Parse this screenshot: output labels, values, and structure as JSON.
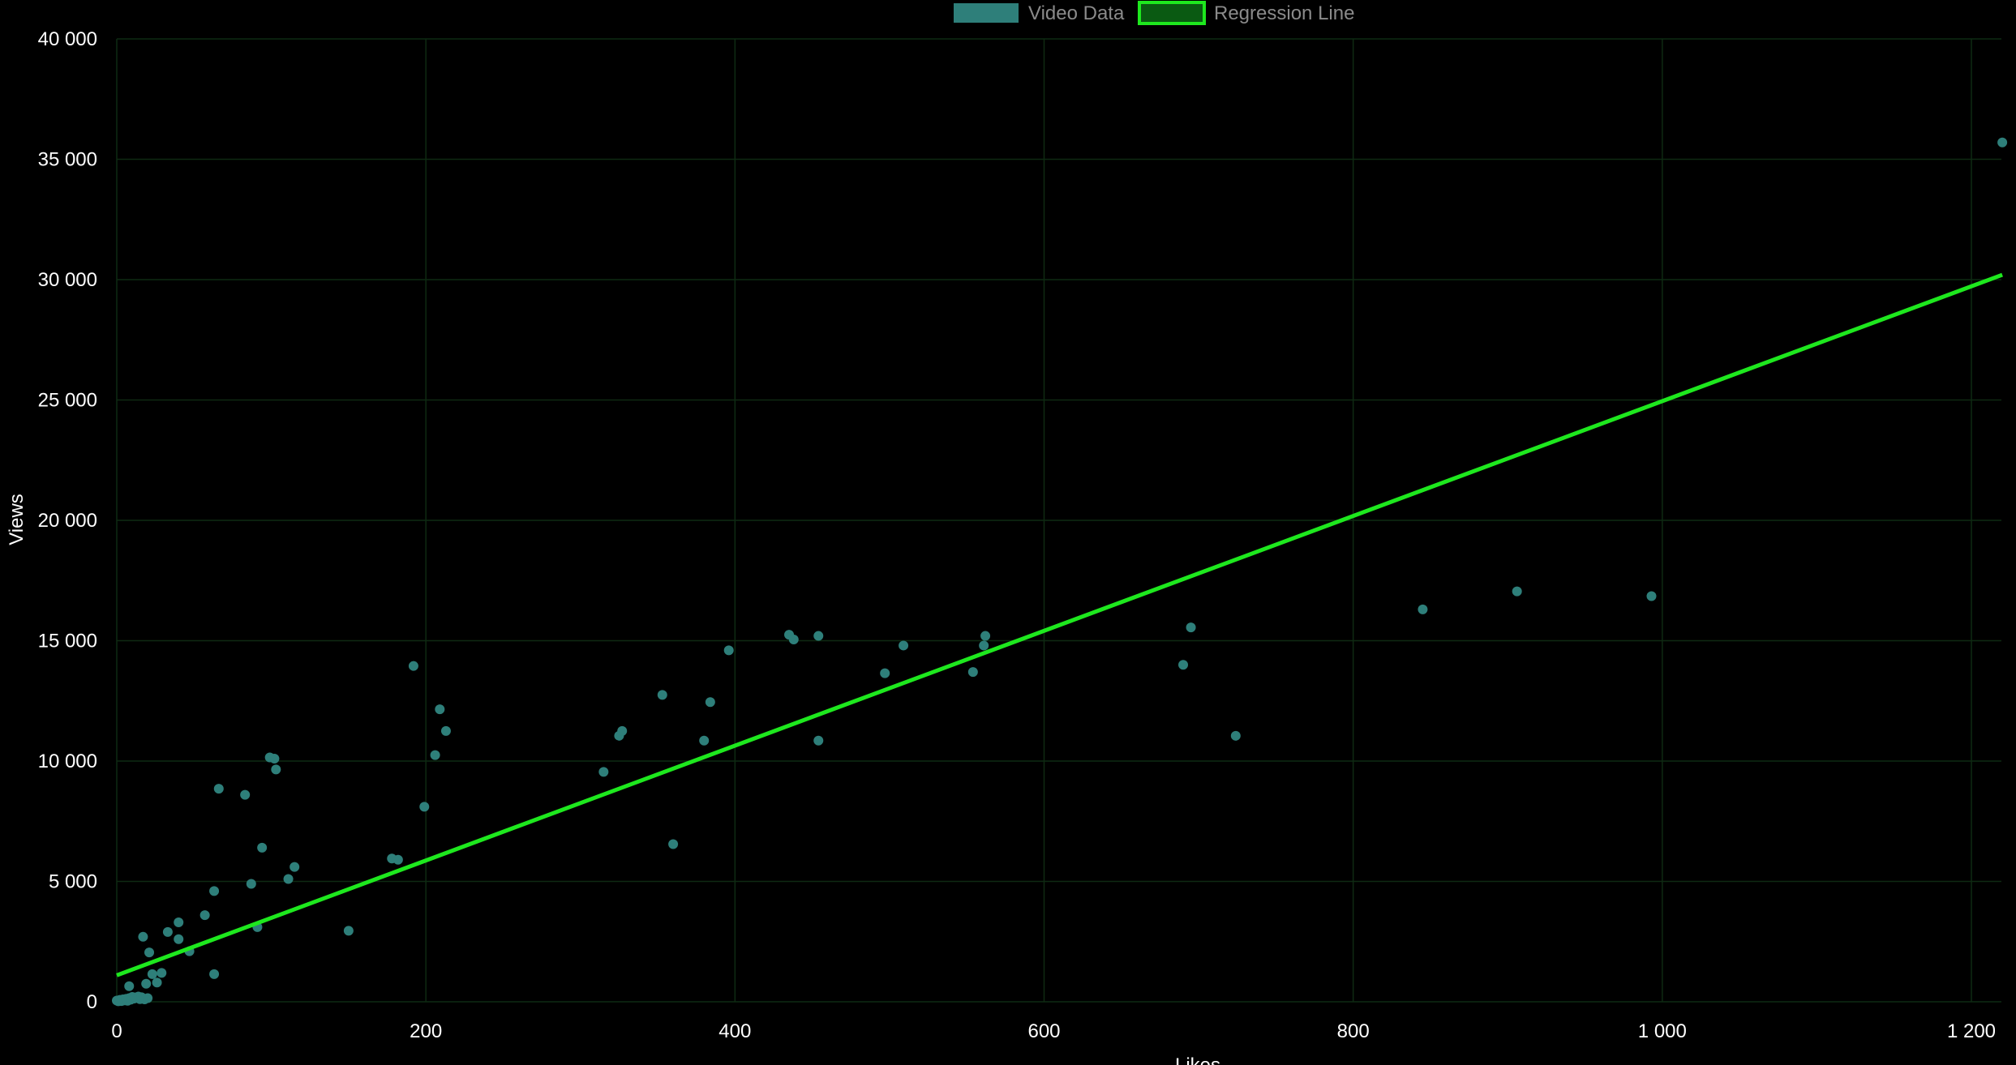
{
  "chart_data": {
    "type": "scatter",
    "xlabel": "Likes",
    "ylabel": "Views",
    "xlim": [
      0,
      1220
    ],
    "ylim": [
      0,
      40000
    ],
    "x_ticks": [
      0,
      200,
      400,
      600,
      800,
      1000,
      1200
    ],
    "y_ticks": [
      0,
      5000,
      10000,
      15000,
      20000,
      25000,
      30000,
      35000,
      40000
    ],
    "x_tick_labels": [
      "0",
      "200",
      "400",
      "600",
      "800",
      "1 000",
      "1 200"
    ],
    "y_tick_labels": [
      "0",
      "5 000",
      "10 000",
      "15 000",
      "20 000",
      "25 000",
      "30 000",
      "35 000",
      "40 000"
    ],
    "grid": true,
    "legend_position": "top-center",
    "colors": {
      "background": "#000000",
      "grid": "#0e2a12",
      "points": "#2e7f7a",
      "regression": "#1ee81e",
      "legend_text": "#8a8a8a",
      "tick_text": "#ffffff"
    },
    "series": [
      {
        "name": "Video Data",
        "kind": "scatter",
        "points": [
          [
            0,
            50
          ],
          [
            1,
            20
          ],
          [
            2,
            80
          ],
          [
            3,
            30
          ],
          [
            4,
            100
          ],
          [
            5,
            60
          ],
          [
            6,
            120
          ],
          [
            7,
            40
          ],
          [
            8,
            150
          ],
          [
            9,
            90
          ],
          [
            10,
            200
          ],
          [
            11,
            130
          ],
          [
            12,
            180
          ],
          [
            13,
            160
          ],
          [
            14,
            220
          ],
          [
            15,
            110
          ],
          [
            16,
            190
          ],
          [
            18,
            100
          ],
          [
            20,
            150
          ],
          [
            8,
            650
          ],
          [
            17,
            2700
          ],
          [
            19,
            750
          ],
          [
            21,
            2050
          ],
          [
            23,
            1150
          ],
          [
            26,
            800
          ],
          [
            29,
            1200
          ],
          [
            33,
            2900
          ],
          [
            40,
            2600
          ],
          [
            40,
            3300
          ],
          [
            47,
            2100
          ],
          [
            57,
            3600
          ],
          [
            63,
            4600
          ],
          [
            63,
            1150
          ],
          [
            66,
            8850
          ],
          [
            83,
            8600
          ],
          [
            87,
            4900
          ],
          [
            91,
            3100
          ],
          [
            94,
            6400
          ],
          [
            99,
            10150
          ],
          [
            102,
            10100
          ],
          [
            103,
            9650
          ],
          [
            111,
            5100
          ],
          [
            115,
            5600
          ],
          [
            150,
            2950
          ],
          [
            178,
            5950
          ],
          [
            182,
            5900
          ],
          [
            192,
            13950
          ],
          [
            199,
            8100
          ],
          [
            206,
            10250
          ],
          [
            209,
            12150
          ],
          [
            213,
            11250
          ],
          [
            315,
            9550
          ],
          [
            325,
            11050
          ],
          [
            327,
            11250
          ],
          [
            353,
            12750
          ],
          [
            360,
            6550
          ],
          [
            380,
            10850
          ],
          [
            384,
            12450
          ],
          [
            396,
            14600
          ],
          [
            435,
            15250
          ],
          [
            438,
            15050
          ],
          [
            454,
            15200
          ],
          [
            454,
            10850
          ],
          [
            497,
            13650
          ],
          [
            509,
            14800
          ],
          [
            554,
            13700
          ],
          [
            561,
            14800
          ],
          [
            562,
            15200
          ],
          [
            690,
            14000
          ],
          [
            695,
            15550
          ],
          [
            724,
            11050
          ],
          [
            845,
            16300
          ],
          [
            906,
            17050
          ],
          [
            993,
            16850
          ],
          [
            1220,
            35700
          ]
        ]
      },
      {
        "name": "Regression Line",
        "kind": "line",
        "points": [
          [
            0,
            1100
          ],
          [
            1220,
            30200
          ]
        ]
      }
    ]
  }
}
